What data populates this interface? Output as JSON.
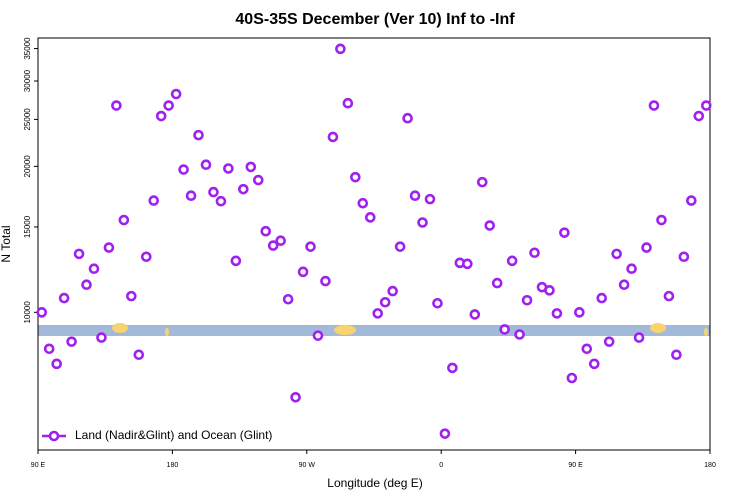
{
  "chart_data": {
    "type": "scatter",
    "title": "40S-35S December (Ver 10)   Inf to -Inf",
    "x_label": "Longitude (deg E)",
    "y_label": "N Total",
    "log_y": true,
    "xlim": [
      90,
      540
    ],
    "xticks": [
      {
        "value": 90,
        "label": "90 E"
      },
      180,
      {
        "value": 270,
        "label": "90 W"
      },
      {
        "value": 360,
        "label": "0"
      },
      {
        "value": 450,
        "label": "90 E"
      },
      {
        "value": 540,
        "label": "180"
      }
    ],
    "ylim": [
      5200,
      36800
    ],
    "yticks": [
      10000,
      15000,
      20000,
      25000,
      30000,
      35000
    ],
    "legend": "bottom-left",
    "series": [
      {
        "name": "Land (Nadir&Glint) and Ocean (Glint)",
        "color": "#a020f0",
        "x": [
          92.5,
          97.5,
          102.5,
          107.5,
          112.5,
          117.5,
          122.5,
          127.5,
          132.5,
          137.5,
          142.5,
          147.5,
          152.5,
          157.5,
          162.5,
          167.5,
          172.5,
          177.5,
          182.5,
          187.5,
          192.5,
          197.5,
          202.5,
          207.5,
          212.5,
          217.5,
          222.5,
          227.5,
          232.5,
          237.5,
          242.5,
          247.5,
          252.5,
          257.5,
          262.5,
          267.5,
          272.5,
          277.5,
          282.5,
          287.5,
          292.5,
          297.5,
          302.5,
          307.5,
          312.5,
          317.5,
          322.5,
          327.5,
          332.5,
          337.5,
          342.5,
          347.5,
          352.5,
          357.5,
          362.5,
          367.5,
          372.5,
          377.5,
          382.5,
          387.5,
          392.5,
          397.5,
          402.5,
          407.5,
          412.5,
          417.5,
          422.5,
          427.5,
          432.5,
          437.5,
          442.5,
          447.5,
          452.5,
          457.5,
          462.5,
          467.5,
          472.5,
          477.5,
          482.5,
          487.5,
          492.5,
          497.5,
          502.5,
          507.5,
          512.5,
          517.5,
          522.5,
          527.5,
          532.5,
          537.5
        ],
        "values": [
          10000,
          8410,
          7830,
          10700,
          8700,
          13200,
          11400,
          12300,
          8870,
          13600,
          26700,
          15500,
          10800,
          8175,
          13020,
          17000,
          25400,
          26700,
          28200,
          19700,
          17400,
          23200,
          20160,
          17700,
          16950,
          19800,
          12770,
          17950,
          19950,
          18740,
          14700,
          13730,
          14050,
          10640,
          6680,
          12120,
          13660,
          8950,
          11600,
          23000,
          34950,
          27000,
          19000,
          16790,
          15700,
          9950,
          10490,
          11060,
          13660,
          25140,
          17400,
          15320,
          17120,
          10440,
          5620,
          7680,
          12650,
          12590,
          9900,
          18560,
          15100,
          11490,
          9220,
          12770,
          9000,
          10590,
          13270,
          11270,
          11100,
          9950,
          14600,
          7320,
          10000,
          8410,
          7830,
          10700,
          8700,
          13200,
          11400,
          12300,
          8870,
          13600,
          26700,
          15500,
          10800,
          8175,
          13020,
          17000,
          25400,
          26700
        ]
      }
    ]
  }
}
